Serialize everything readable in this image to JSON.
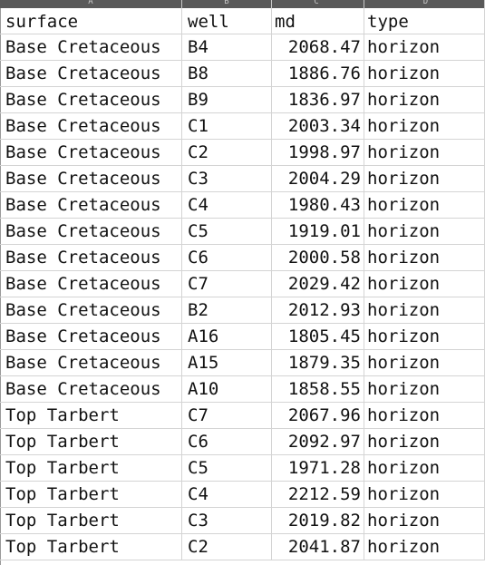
{
  "columns": [
    {
      "letter": "A"
    },
    {
      "letter": "B"
    },
    {
      "letter": "C"
    },
    {
      "letter": "D"
    }
  ],
  "header": [
    "surface",
    "well",
    "md",
    "type"
  ],
  "rows": [
    [
      "Base Cretaceous",
      "B4",
      "2068.47",
      "horizon"
    ],
    [
      "Base Cretaceous",
      "B8",
      "1886.76",
      "horizon"
    ],
    [
      "Base Cretaceous",
      "B9",
      "1836.97",
      "horizon"
    ],
    [
      "Base Cretaceous",
      "C1",
      "2003.34",
      "horizon"
    ],
    [
      "Base Cretaceous",
      "C2",
      "1998.97",
      "horizon"
    ],
    [
      "Base Cretaceous",
      "C3",
      "2004.29",
      "horizon"
    ],
    [
      "Base Cretaceous",
      "C4",
      "1980.43",
      "horizon"
    ],
    [
      "Base Cretaceous",
      "C5",
      "1919.01",
      "horizon"
    ],
    [
      "Base Cretaceous",
      "C6",
      "2000.58",
      "horizon"
    ],
    [
      "Base Cretaceous",
      "C7",
      "2029.42",
      "horizon"
    ],
    [
      "Base Cretaceous",
      "B2",
      "2012.93",
      "horizon"
    ],
    [
      "Base Cretaceous",
      "A16",
      "1805.45",
      "horizon"
    ],
    [
      "Base Cretaceous",
      "A15",
      "1879.35",
      "horizon"
    ],
    [
      "Base Cretaceous",
      "A10",
      "1858.55",
      "horizon"
    ],
    [
      "Top Tarbert",
      "C7",
      "2067.96",
      "horizon"
    ],
    [
      "Top Tarbert",
      "C6",
      "2092.97",
      "horizon"
    ],
    [
      "Top Tarbert",
      "C5",
      "1971.28",
      "horizon"
    ],
    [
      "Top Tarbert",
      "C4",
      "2212.59",
      "horizon"
    ],
    [
      "Top Tarbert",
      "C3",
      "2019.82",
      "horizon"
    ],
    [
      "Top Tarbert",
      "C2",
      "2041.87",
      "horizon"
    ]
  ]
}
